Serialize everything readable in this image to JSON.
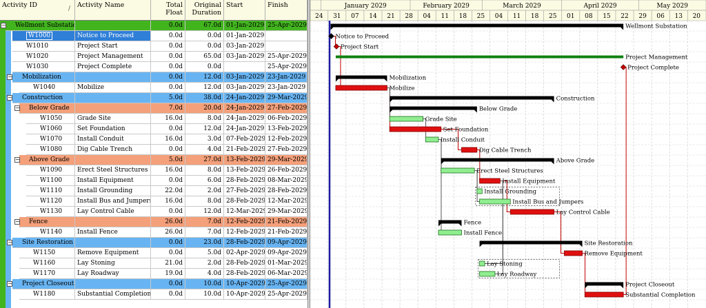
{
  "columns": {
    "activity_id": "Activity ID",
    "activity_name": "Activity Name",
    "total_float_1": "Total",
    "total_float_2": "Float",
    "orig_dur_1": "Original",
    "orig_dur_2": "Duration",
    "start": "Start",
    "finish": "Finish"
  },
  "colors": {
    "wbs0": "#42b41e",
    "wbs1": "#68b4f2",
    "wbs2": "#f4a07a",
    "critical_bar": "#e01010",
    "noncritical_bar": "#90ee90",
    "summary_bar": "#000000",
    "project_bar": "#108010",
    "data_date": "#1a1aa0"
  },
  "timescale": {
    "months": [
      "January 2029",
      "February 2029",
      "March 2029",
      "April 2029",
      "May 2029"
    ],
    "weeks": [
      "24",
      "31",
      "07",
      "14",
      "21",
      "28",
      "04",
      "11",
      "18",
      "25",
      "04",
      "11",
      "18",
      "25",
      "01",
      "08",
      "15",
      "22",
      "29",
      "06",
      "13",
      "20"
    ]
  },
  "rows": [
    {
      "type": "wbs",
      "level": 0,
      "toggle": "−",
      "id": "Wellmont Substation",
      "name": "",
      "float": "0.0d",
      "dur": "67.0d",
      "start": "01-Jan-2029",
      "finish": "25-Apr-2029",
      "bar": "project",
      "s": 0,
      "e": 114,
      "label": "Wellmont Substation"
    },
    {
      "type": "act",
      "level": 1,
      "id": "W1000",
      "name": "Notice to Proceed",
      "float": "0.0d",
      "dur": "0.0d",
      "start": "01-Jan-2029",
      "finish": "",
      "bar": "ms_start",
      "s": 0,
      "label": "Notice to Proceed",
      "selected": true
    },
    {
      "type": "act",
      "level": 1,
      "id": "W1010",
      "name": "Project Start",
      "float": "0.0d",
      "dur": "0.0d",
      "start": "03-Jan-2029",
      "finish": "",
      "bar": "ms_start",
      "s": 2,
      "label": "Project Start"
    },
    {
      "type": "act",
      "level": 1,
      "id": "W1020",
      "name": "Project Management",
      "float": "0.0d",
      "dur": "65.0d",
      "start": "03-Jan-2029",
      "finish": "25-Apr-2029",
      "bar": "lev",
      "s": 2,
      "e": 114,
      "label": "Project Management"
    },
    {
      "type": "act",
      "level": 1,
      "id": "W1030",
      "name": "Project Complete",
      "float": "0.0d",
      "dur": "0.0d",
      "start": "",
      "finish": "25-Apr-2029",
      "bar": "ms_end",
      "s": 114,
      "label": "Project Complete"
    },
    {
      "type": "wbs",
      "level": 1,
      "toggle": "−",
      "id": "Mobilization",
      "name": "",
      "float": "0.0d",
      "dur": "12.0d",
      "start": "03-Jan-2029",
      "finish": "23-Jan-2029",
      "bar": "summary",
      "s": 2,
      "e": 22,
      "label": "Mobilization"
    },
    {
      "type": "act",
      "level": 2,
      "id": "W1040",
      "name": "Mobilize",
      "float": "0.0d",
      "dur": "12.0d",
      "start": "03-Jan-2029",
      "finish": "23-Jan-2029",
      "bar": "crit",
      "s": 2,
      "e": 22,
      "label": "Mobilize"
    },
    {
      "type": "wbs",
      "level": 1,
      "toggle": "−",
      "id": "Construction",
      "name": "",
      "float": "5.0d",
      "dur": "38.0d",
      "start": "24-Jan-2029",
      "finish": "29-Mar-2029",
      "bar": "summary",
      "s": 23,
      "e": 87,
      "label": "Construction"
    },
    {
      "type": "wbs",
      "level": 2,
      "toggle": "−",
      "id": "Below Grade",
      "name": "",
      "float": "7.0d",
      "dur": "20.0d",
      "start": "24-Jan-2029",
      "finish": "27-Feb-2029",
      "bar": "summary",
      "s": 23,
      "e": 57,
      "label": "Below Grade"
    },
    {
      "type": "act",
      "level": 3,
      "id": "W1050",
      "name": "Grade Site",
      "float": "16.0d",
      "dur": "8.0d",
      "start": "24-Jan-2029",
      "finish": "06-Feb-2029",
      "bar": "noncrit",
      "s": 23,
      "e": 36,
      "label": "Grade Site"
    },
    {
      "type": "act",
      "level": 3,
      "id": "W1060",
      "name": "Set Foundation",
      "float": "0.0d",
      "dur": "12.0d",
      "start": "24-Jan-2029",
      "finish": "13-Feb-2029",
      "bar": "crit",
      "s": 23,
      "e": 43,
      "label": "Set Foundation"
    },
    {
      "type": "act",
      "level": 3,
      "id": "W1070",
      "name": "Install Conduit",
      "float": "16.0d",
      "dur": "3.0d",
      "start": "07-Feb-2029",
      "finish": "12-Feb-2029",
      "bar": "noncrit",
      "s": 37,
      "e": 42,
      "label": "Install Conduit"
    },
    {
      "type": "act",
      "level": 3,
      "id": "W1080",
      "name": "Dig Cable Trench",
      "float": "0.0d",
      "dur": "4.0d",
      "start": "21-Feb-2029",
      "finish": "27-Feb-2029",
      "bar": "crit",
      "s": 51,
      "e": 57,
      "label": "Dig Cable Trench"
    },
    {
      "type": "wbs",
      "level": 2,
      "toggle": "−",
      "id": "Above Grade",
      "name": "",
      "float": "5.0d",
      "dur": "27.0d",
      "start": "13-Feb-2029",
      "finish": "29-Mar-2029",
      "bar": "summary",
      "s": 43,
      "e": 87,
      "label": "Above Grade"
    },
    {
      "type": "act",
      "level": 3,
      "id": "W1090",
      "name": "Erect Steel Structures",
      "float": "16.0d",
      "dur": "8.0d",
      "start": "13-Feb-2029",
      "finish": "26-Feb-2029",
      "bar": "noncrit",
      "s": 43,
      "e": 56,
      "label": "Erect Steel Structures"
    },
    {
      "type": "act",
      "level": 3,
      "id": "W1100",
      "name": "Install Equipment",
      "float": "0.0d",
      "dur": "6.0d",
      "start": "28-Feb-2029",
      "finish": "08-Mar-2029",
      "bar": "crit",
      "s": 58,
      "e": 66,
      "label": "Install Equipment"
    },
    {
      "type": "act",
      "level": 3,
      "id": "W1110",
      "name": "Install Grounding",
      "float": "22.0d",
      "dur": "2.0d",
      "start": "27-Feb-2029",
      "finish": "28-Feb-2029",
      "bar": "noncrit",
      "s": 57,
      "e": 59,
      "label": "Install Grounding"
    },
    {
      "type": "act",
      "level": 3,
      "id": "W1120",
      "name": "Install Bus and Jumpers",
      "float": "16.0d",
      "dur": "8.0d",
      "start": "28-Feb-2029",
      "finish": "12-Mar-2029",
      "bar": "noncrit",
      "s": 58,
      "e": 70,
      "label": "Install Bus and Jumpers"
    },
    {
      "type": "act",
      "level": 3,
      "id": "W1130",
      "name": "Lay Control Cable",
      "float": "0.0d",
      "dur": "12.0d",
      "start": "12-Mar-2029",
      "finish": "29-Mar-2029",
      "bar": "crit",
      "s": 70,
      "e": 87,
      "label": "Lay Control Cable"
    },
    {
      "type": "wbs",
      "level": 2,
      "toggle": "−",
      "id": "Fence",
      "name": "",
      "float": "26.0d",
      "dur": "7.0d",
      "start": "12-Feb-2029",
      "finish": "21-Feb-2029",
      "bar": "summary",
      "s": 42,
      "e": 51,
      "label": "Fence"
    },
    {
      "type": "act",
      "level": 3,
      "id": "W1140",
      "name": "Install Fence",
      "float": "26.0d",
      "dur": "7.0d",
      "start": "12-Feb-2029",
      "finish": "21-Feb-2029",
      "bar": "noncrit",
      "s": 42,
      "e": 51,
      "label": "Install Fence"
    },
    {
      "type": "wbs",
      "level": 1,
      "toggle": "−",
      "id": "Site Restoration",
      "name": "",
      "float": "0.0d",
      "dur": "23.0d",
      "start": "28-Feb-2029",
      "finish": "09-Apr-2029",
      "bar": "summary",
      "s": 58,
      "e": 98,
      "label": "Site Restoration"
    },
    {
      "type": "act",
      "level": 2,
      "id": "W1150",
      "name": "Remove Equipment",
      "float": "0.0d",
      "dur": "5.0d",
      "start": "02-Apr-2029",
      "finish": "09-Apr-2029",
      "bar": "crit",
      "s": 91,
      "e": 98,
      "label": "Remove Equipment"
    },
    {
      "type": "act",
      "level": 2,
      "id": "W1160",
      "name": "Lay Stoning",
      "float": "21.0d",
      "dur": "2.0d",
      "start": "28-Feb-2029",
      "finish": "01-Mar-2029",
      "bar": "noncrit",
      "s": 58,
      "e": 60,
      "label": "Lay Stoning"
    },
    {
      "type": "act",
      "level": 2,
      "id": "W1170",
      "name": "Lay Roadway",
      "float": "19.0d",
      "dur": "4.0d",
      "start": "28-Feb-2029",
      "finish": "06-Mar-2029",
      "bar": "noncrit",
      "s": 58,
      "e": 64,
      "label": "Lay Roadway"
    },
    {
      "type": "wbs",
      "level": 1,
      "toggle": "−",
      "id": "Project Closeout",
      "name": "",
      "float": "0.0d",
      "dur": "10.0d",
      "start": "10-Apr-2029",
      "finish": "25-Apr-2029",
      "bar": "summary",
      "s": 99,
      "e": 114,
      "label": "Project Closeout"
    },
    {
      "type": "act",
      "level": 2,
      "id": "W1180",
      "name": "Substantial Completion",
      "float": "0.0d",
      "dur": "10.0d",
      "start": "10-Apr-2029",
      "finish": "25-Apr-2029",
      "bar": "crit",
      "s": 99,
      "e": 114,
      "label": "Substantial Completion"
    }
  ]
}
